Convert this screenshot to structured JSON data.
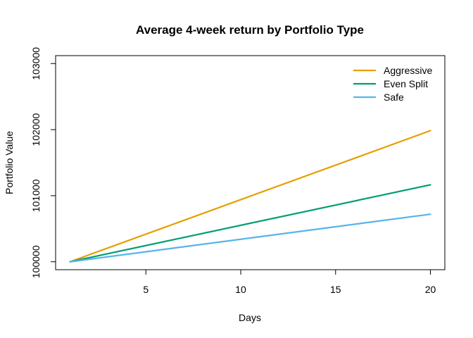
{
  "chart_data": {
    "type": "line",
    "title": "Average 4-week return by Portfolio Type",
    "xlabel": "Days",
    "ylabel": "Portfolio Value",
    "xlim": [
      0.24,
      20.76
    ],
    "ylim": [
      99880,
      103120
    ],
    "x_ticks": [
      5,
      10,
      15,
      20
    ],
    "y_ticks": [
      100000,
      101000,
      102000,
      103000
    ],
    "grid": false,
    "legend_position": "top-right",
    "series": [
      {
        "name": "Aggressive",
        "color": "#E69F00",
        "x": [
          1,
          20
        ],
        "y": [
          100000,
          101985
        ]
      },
      {
        "name": "Even Split",
        "color": "#009E73",
        "x": [
          1,
          20
        ],
        "y": [
          100000,
          101165
        ]
      },
      {
        "name": "Safe",
        "color": "#56B4E9",
        "x": [
          1,
          20
        ],
        "y": [
          100000,
          100720
        ]
      }
    ]
  }
}
